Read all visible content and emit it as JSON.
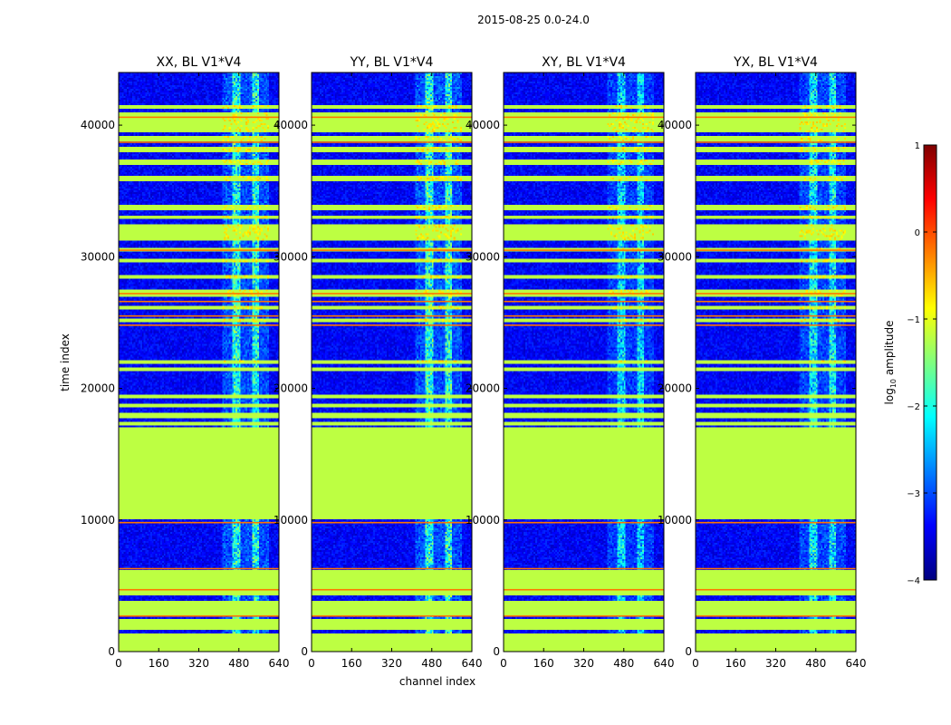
{
  "figure": {
    "suptitle": "2015-08-25 0.0-24.0",
    "xlabel": "channel index",
    "ylabel": "time index"
  },
  "colorbar": {
    "label": "log10 amplitude",
    "label_base": "log",
    "label_sub": "10",
    "label_rest": " amplitude",
    "range": [
      -4,
      1
    ],
    "ticks": [
      1,
      0,
      -1,
      -2,
      -3,
      -4
    ],
    "tick_labels": [
      "1",
      "0",
      "−1",
      "−2",
      "−3",
      "−4"
    ],
    "colormap": "jet",
    "stops": [
      "#00007f",
      "#0000ff",
      "#007fff",
      "#00ffff",
      "#7fff7f",
      "#ffff00",
      "#ff7f00",
      "#ff0000",
      "#7f0000"
    ]
  },
  "chart_data": {
    "type": "heatmap",
    "panels": [
      {
        "title": "XX, BL V1*V4",
        "intensity": 1.0
      },
      {
        "title": "YY, BL V1*V4",
        "intensity": 1.05
      },
      {
        "title": "XY, BL V1*V4",
        "intensity": 0.8
      },
      {
        "title": "YX, BL V1*V4",
        "intensity": 0.9
      }
    ],
    "xlim": [
      0,
      640
    ],
    "ylim": [
      0,
      44000
    ],
    "xticks": [
      0,
      160,
      320,
      480,
      640
    ],
    "xtick_labels": [
      "0",
      "160",
      "320",
      "480",
      "640"
    ],
    "yticks": [
      0,
      10000,
      20000,
      30000,
      40000
    ],
    "ytick_labels": [
      "0",
      "10000",
      "20000",
      "30000",
      "40000"
    ],
    "value_units": "log10 amplitude",
    "flagged_value": -1.2,
    "background_value": -3.4,
    "rfi_channel_range": [
      410,
      600
    ],
    "flagged_rows": [
      [
        0,
        1400
      ],
      [
        1700,
        2500
      ],
      [
        2700,
        3800
      ],
      [
        4200,
        6200
      ],
      [
        10000,
        17000
      ],
      [
        17200,
        17400
      ],
      [
        17800,
        18100
      ],
      [
        18500,
        18800
      ],
      [
        19300,
        19500
      ],
      [
        21300,
        21600
      ],
      [
        21800,
        22200
      ],
      [
        25000,
        25300
      ],
      [
        26000,
        26300
      ],
      [
        27000,
        27500
      ],
      [
        28300,
        28600
      ],
      [
        29600,
        29800
      ],
      [
        30400,
        30700
      ],
      [
        31200,
        32400
      ],
      [
        32800,
        33100
      ],
      [
        33500,
        34000
      ],
      [
        35700,
        36200
      ],
      [
        37000,
        37400
      ],
      [
        38000,
        38400
      ],
      [
        38800,
        39200
      ],
      [
        39500,
        41000
      ],
      [
        41200,
        41500
      ]
    ],
    "red_rows": [
      2700,
      4700,
      6300,
      9800,
      24800,
      25500,
      26600,
      27200,
      30500,
      38700,
      40600
    ]
  }
}
